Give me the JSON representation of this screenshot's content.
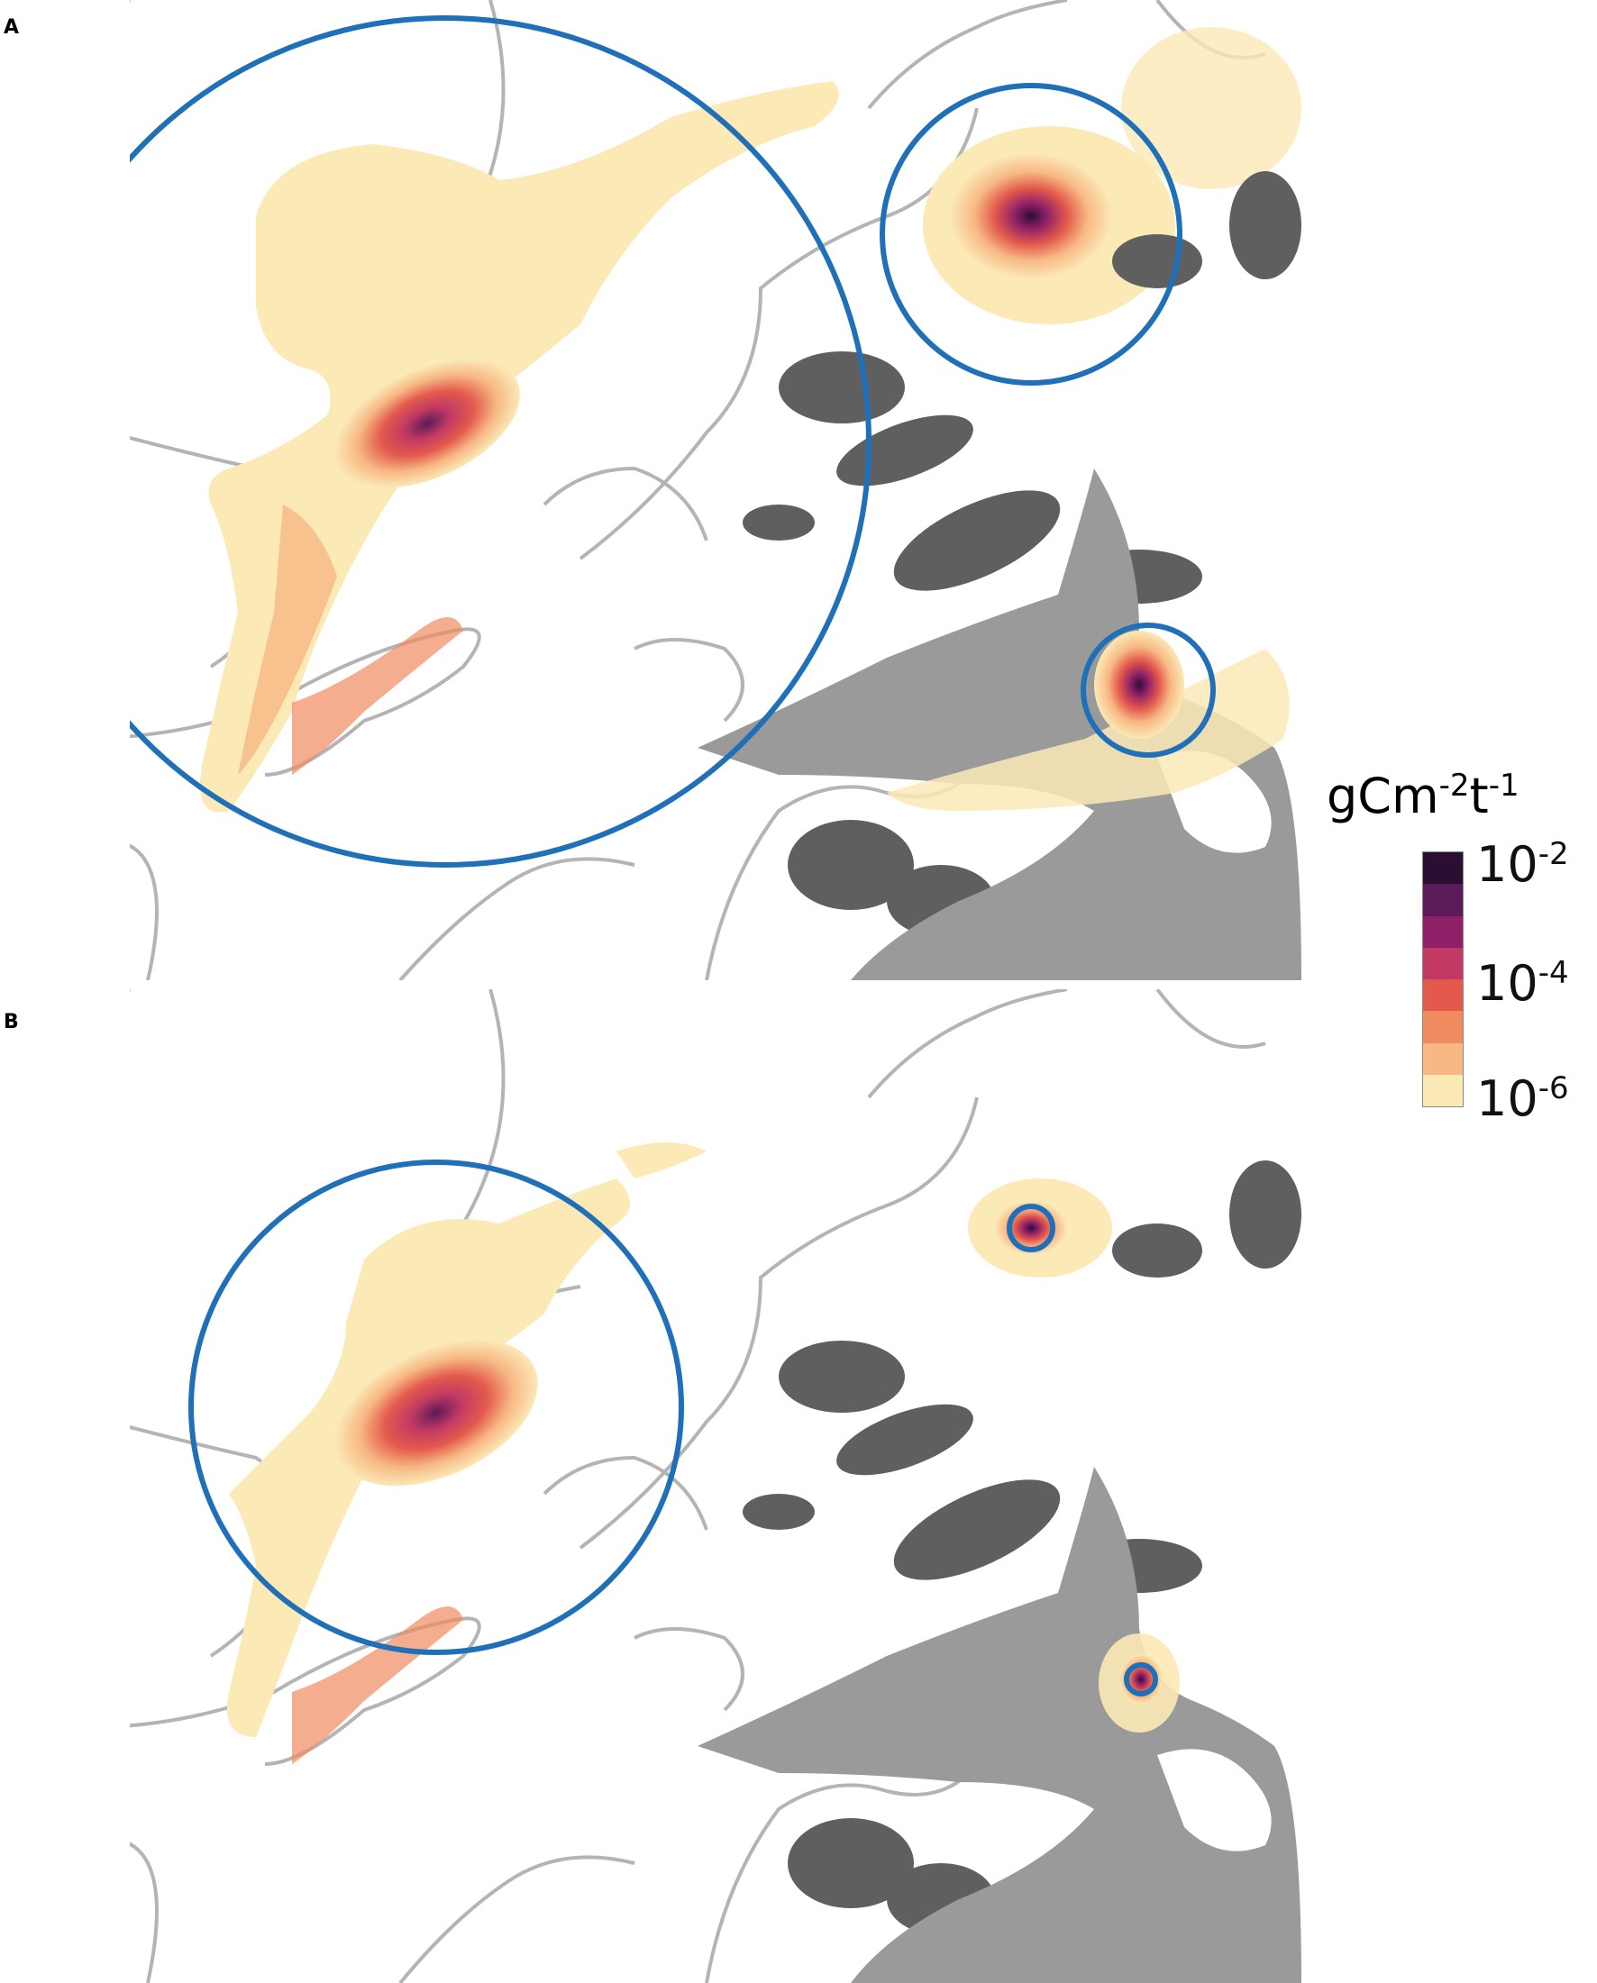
{
  "panels": [
    {
      "label": "A"
    },
    {
      "label": "B"
    }
  ],
  "colorbar": {
    "unit_base": "gCm",
    "unit_exp1": "-2",
    "unit_mid": "t",
    "unit_exp2": "-1",
    "ticks": [
      {
        "base": "10",
        "exp": "-2"
      },
      {
        "base": "10",
        "exp": "-4"
      },
      {
        "base": "10",
        "exp": "-6"
      }
    ],
    "levels": [
      "#2a0f33",
      "#5c1a5a",
      "#8f2068",
      "#c23a63",
      "#e35a4c",
      "#f08a5f",
      "#f7b884",
      "#fbe9b6"
    ]
  },
  "colors": {
    "land": "#9a9a9a",
    "islands": "#5f5f5f",
    "contour": "#b4b4b4",
    "circle": "#1f70b8"
  }
}
